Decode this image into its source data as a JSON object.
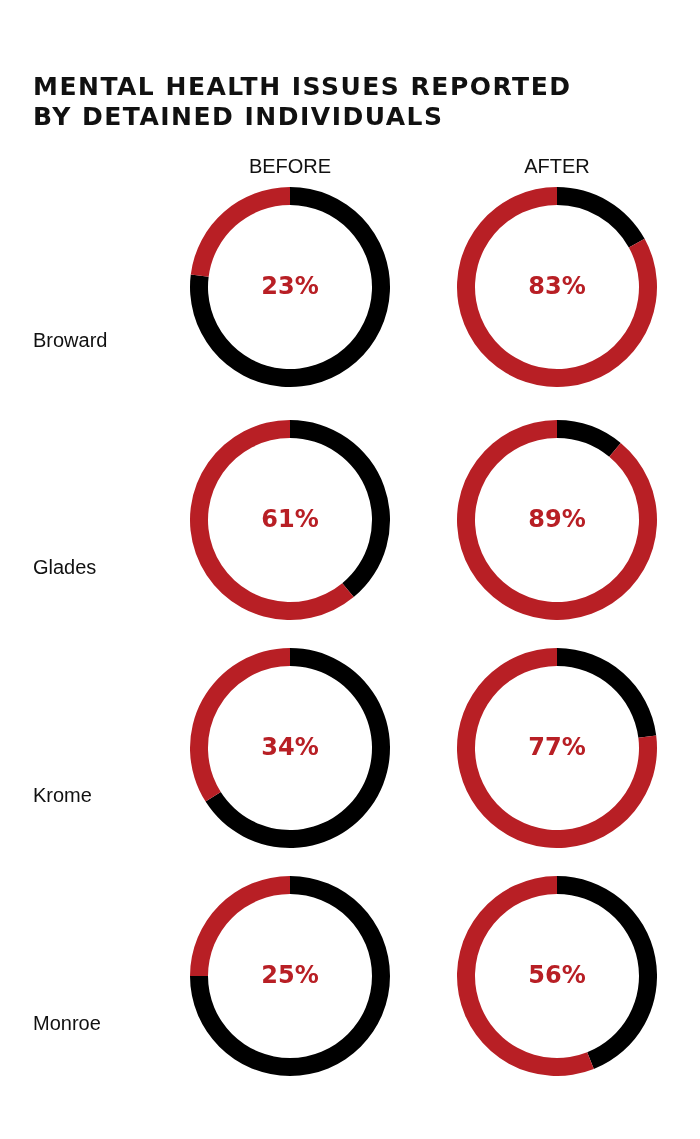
{
  "chart_data": [
    {
      "type": "other",
      "title": "MENTAL HEALTH ISSUES REPORTED BY DETAINED INDIVIDUALS"
    },
    {
      "type": "donut",
      "title": "BEFORE",
      "ylabel": "Broward",
      "categories": [
        null,
        null
      ],
      "values": [
        77,
        23
      ],
      "colors": [
        "#000000",
        "#b81f25"
      ],
      "value_labels": [
        null,
        "23%"
      ]
    },
    {
      "type": "donut",
      "title": "AFTER",
      "categories": [
        null,
        null
      ],
      "values": [
        17,
        83
      ],
      "colors": [
        "#000000",
        "#b81f25"
      ],
      "value_labels": [
        null,
        "83%"
      ]
    },
    {
      "type": "donut",
      "ylabel": "Glades",
      "categories": [
        null,
        null
      ],
      "values": [
        39,
        61
      ],
      "colors": [
        "#000000",
        "#b81f25"
      ],
      "value_labels": [
        null,
        "61%"
      ]
    },
    {
      "type": "donut",
      "categories": [
        null,
        null
      ],
      "values": [
        11,
        89
      ],
      "colors": [
        "#000000",
        "#b81f25"
      ],
      "value_labels": [
        null,
        "89%"
      ]
    },
    {
      "type": "donut",
      "ylabel": "Krome",
      "categories": [
        null,
        null
      ],
      "values": [
        66,
        34
      ],
      "colors": [
        "#000000",
        "#b81f25"
      ],
      "value_labels": [
        null,
        "34%"
      ]
    },
    {
      "type": "donut",
      "categories": [
        null,
        null
      ],
      "values": [
        23,
        77
      ],
      "colors": [
        "#000000",
        "#b81f25"
      ],
      "value_labels": [
        null,
        "77%"
      ]
    },
    {
      "type": "donut",
      "ylabel": "Monroe",
      "categories": [
        null,
        null
      ],
      "values": [
        75,
        25
      ],
      "colors": [
        "#000000",
        "#b81f25"
      ],
      "value_labels": [
        null,
        "25%"
      ]
    },
    {
      "type": "donut",
      "categories": [
        null,
        null
      ],
      "values": [
        44,
        56
      ],
      "colors": [
        "#000000",
        "#b81f25"
      ],
      "value_labels": [
        null,
        "56%"
      ]
    }
  ]
}
